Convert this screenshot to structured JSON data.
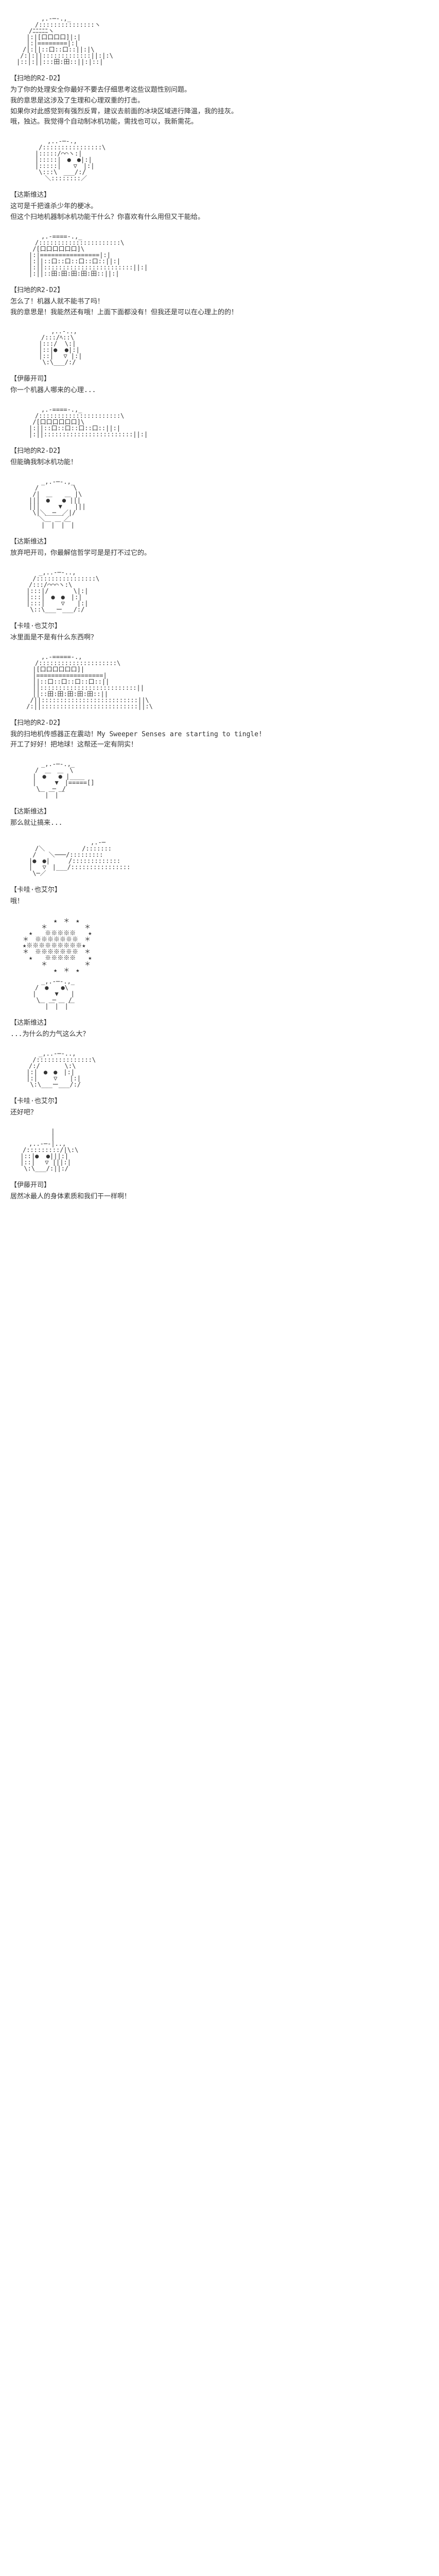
{
  "entries": [
    {
      "speaker": "【扫地的R2-D2】",
      "lines": [
        "为了你的处理安全你最好不要去仔细思考这些议题性别问题。",
        "我的意思是这涉及了生理和心理双重的打击。",
        "如果你对此感觉到有强烈反胃，建议去前面的冰块区域进行降温，我的挂灰。",
        "哦，独达。我觉得个自动制冰机功能，需找也可以，我新需花。"
      ]
    },
    {
      "speaker": "【达斯维达】",
      "lines": [
        "这可是千把谁杀少年的梗冰。",
        "但这个扫地机器制冰机功能干什么？你喜欢有什么用但又干能给。"
      ]
    },
    {
      "speaker": "【扫地的R2-D2】",
      "lines": [
        "怎么了！机器人就不能书了吗！",
        "我的意思是！我能然还有哦！上面下面都没有！但我还是可以在心理上的的！"
      ]
    },
    {
      "speaker": "【伊藤开司】",
      "lines": [
        "你一个机器人哪来的心理..."
      ]
    },
    {
      "speaker": "【扫地的R2-D2】",
      "lines": [
        "但能确我制冰机功能！"
      ]
    },
    {
      "speaker": "【达斯维达】",
      "lines": [
        "放弃吧开司，你最解信哲学可是是打不过它的。"
      ]
    },
    {
      "speaker": "【卡哇·也艾尔】",
      "lines": [
        "冰里面是不是有什么东西啊？"
      ]
    },
    {
      "speaker": "【扫地的R2-D2】",
      "lines": [
        "我的扫地机传感器正在震动！My Sweeper Senses are starting to tingle!",
        "开工了好好！把地球！这帮还一定有阴实！"
      ]
    },
    {
      "speaker": "【达斯维达】",
      "lines": [
        "那么就让搞来..."
      ]
    },
    {
      "speaker": "【卡哇·也艾尔】",
      "lines": [
        "哦！"
      ]
    },
    {
      "speaker": "【达斯维达】",
      "lines": [
        "...为什么的力气这么大？"
      ]
    },
    {
      "speaker": "【卡哇·也艾尔】",
      "lines": [
        "还好吧？"
      ]
    },
    {
      "speaker": "【伊藤开司】",
      "lines": [
        "居然冰最人的身体素质和我们干一样啊！"
      ]
    }
  ],
  "arts": [
    "　　　　　,.-─-.,_\n　　　　/:::::::::::::::ヽ\n　　　/ﾆﾆﾆﾆﾆヽ\n　　 |:|[口口口口]|:|\n　　 |:|========|:|\n　　/|:||::口::口::||:|\\\n　 /:|:||:::::::::::::||:|:\\\n　|::|:||:::田:田::||:|::|",
    "　　　　　　,..-─-.,\n　　　　 /::::::::::::::::\\\n　　　　|:::::/⌒⌒ヽ:|\n　　　　|:::::|　●　●|:|\n　　　　|:::::|　　▽　|:|\n　　　　 \\:::\\　___/:/\n　　　　　 ＼::::::::／",
    "　　　　　,.-====-.,_\n　　　　/::::::::::::::::::::::\\\n　　　 /[口口口口口口]\\\n　　　|:|================|:|\n　　　|:||::口::口::口::口::||:|\n　　　|:||::::::::::::::::::::::::||:|\n　　　|:||::田:田:田:田:田::||:|",
    "　　　　　　 ,..-..,\n　　　　　/:::/ﾍ::\\\n　　　　 |:::/  \\:|\n　　　　 |::|●  ●|:|\n　　　　 |::| 　▽ |:|\n　　　　  \\:\\___/:/",
    "　　　　　,.-====-.,_\n　　　　/::::::::::::::::::::::\\\n　　　 /[口口口口口口]\\\n　　　|:||::口::口::口::口::||:|\n　　　|:||::::::::::::::::::::::::||:|",
    "　　　　　_,.-─-.,_\n　　　　/　　　　　 \\\n　　　 /|　＿　　＿ |\\\n　　　|||　●　　● |||\n　　　|||　　　▼　　|||\n　　　 \\|＼　─　／|/\n　　　　 ＼￣￣￣／\n　　　　　|￣|￣|￣|",
    "　　　　 _,..-─-..,\n　　　 /::::::::::::::::\\\n　　　/:::/⌒⌒⌒ヽ:\\\n　　 |:::|/　　　　\\|:|\n　　 |:::|　●　●　|:|\n　　 |:::|　　 ▽　　|:|\n　　  \\::\\___ー___/:/",
    "　　　　　,.-=====-.,\n　　　　/:::::::::::::::::::::\\\n　　　 |[口口口口口口]|\n　　　 |==================|\n　　　 ||::口::口::口::口::||\n　　　 ||::::::::::::::::::::::::::||\n　　　 ||::田:田:田:田:田::||\n　　  /||::::::::::::::::::::::::::||\\\n　　 /:||::::::::::::::::::::::::::||:\\",
    "　　　　　_,.-─-.,_\n　　　　/　＿　＿　\\\n　　　 |　●　　● |____\n　　　 |　　　▼　|=====[]\n　　　  \\　　─　/\n　　　　 ￣|￣|￣",
    "　　　　　　　　　　　　　,.-─\n　　　　/＼　　　　　　/:::::::\n　　　 /　　＼───/:::::::::\n　　　|●　●|　　　/:::::::::::::\n　　　|　 ▽　|___/::::::::::::::::\n　　　 \\─／",
    "　　　　　　　★　＊　★\n　　　　　＊　　　　　　＊\n　　　★　　※※※※※　　★\n　　＊　※※※※※※※　＊\n　　★※※※※※※※※※★\n　　＊　※※※※※※※　＊\n　　　★　　※※※※※　　★\n　　　　　＊　　　　　　＊\n　　　　　　　★　＊　★",
    "　　　　　_,.-─-.,_\n　　　　/　●　　●\\\n　　　 |　　　▼　　|\n　　　  \\　　─　　/\n　　　　 ￣|￣|￣|￣",
    "　　　　 _,..-─-..,\n　　　 /:::::::::::::::\\\n　　　/:/　　　　\\:\\\n　　 |:|　●　●　|:|\n　　 |:|　　 ▽　　|:|\n　　  \\:\\___ー___/:/",
    "　　　　　　 |\n　　　　　　 |\n　　　,..-─-|..,\n　　/:::::::::/|\\:\\\n　 |::|●  ●|||:|\n　 |::| 　▽ |||:|\n　  \\:\\___/:||:/"
  ]
}
